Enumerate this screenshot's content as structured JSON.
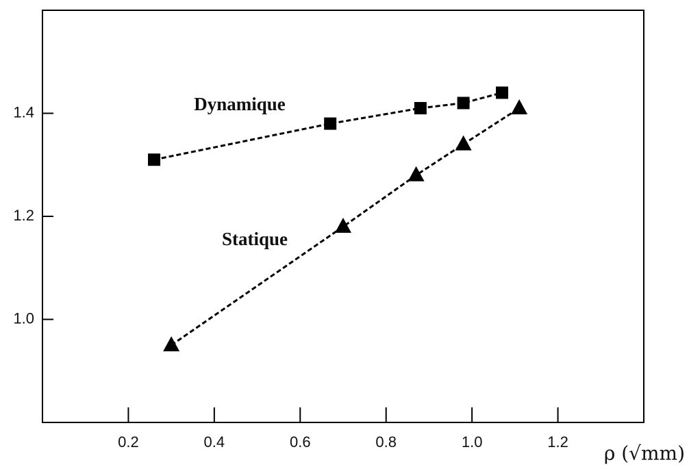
{
  "chart_data": {
    "type": "scatter",
    "x_label": "ρ (√mm)",
    "series": [
      {
        "name": "Dynamique",
        "color": "#000000",
        "marker": "square",
        "linestyle": "dashed",
        "x": [
          0.26,
          0.67,
          0.88,
          0.98,
          1.07
        ],
        "values": [
          1.31,
          1.38,
          1.41,
          1.42,
          1.44
        ]
      },
      {
        "name": "Statique",
        "color": "#000000",
        "marker": "triangle",
        "linestyle": "dashed",
        "x": [
          0.3,
          0.7,
          0.87,
          0.98,
          1.11
        ],
        "values": [
          0.95,
          1.18,
          1.28,
          1.34,
          1.41
        ]
      }
    ],
    "xlim": [
      0,
      1.4
    ],
    "ylim": [
      0.8,
      1.6
    ],
    "xticks": [
      0.2,
      0.4,
      0.6,
      0.8,
      {
        "value": 1.0,
        "label": "1.0"
      },
      1.2
    ],
    "yticks": [
      {
        "value": 1.0,
        "label": "1.0"
      },
      1.2,
      1.4
    ],
    "grid": false
  }
}
